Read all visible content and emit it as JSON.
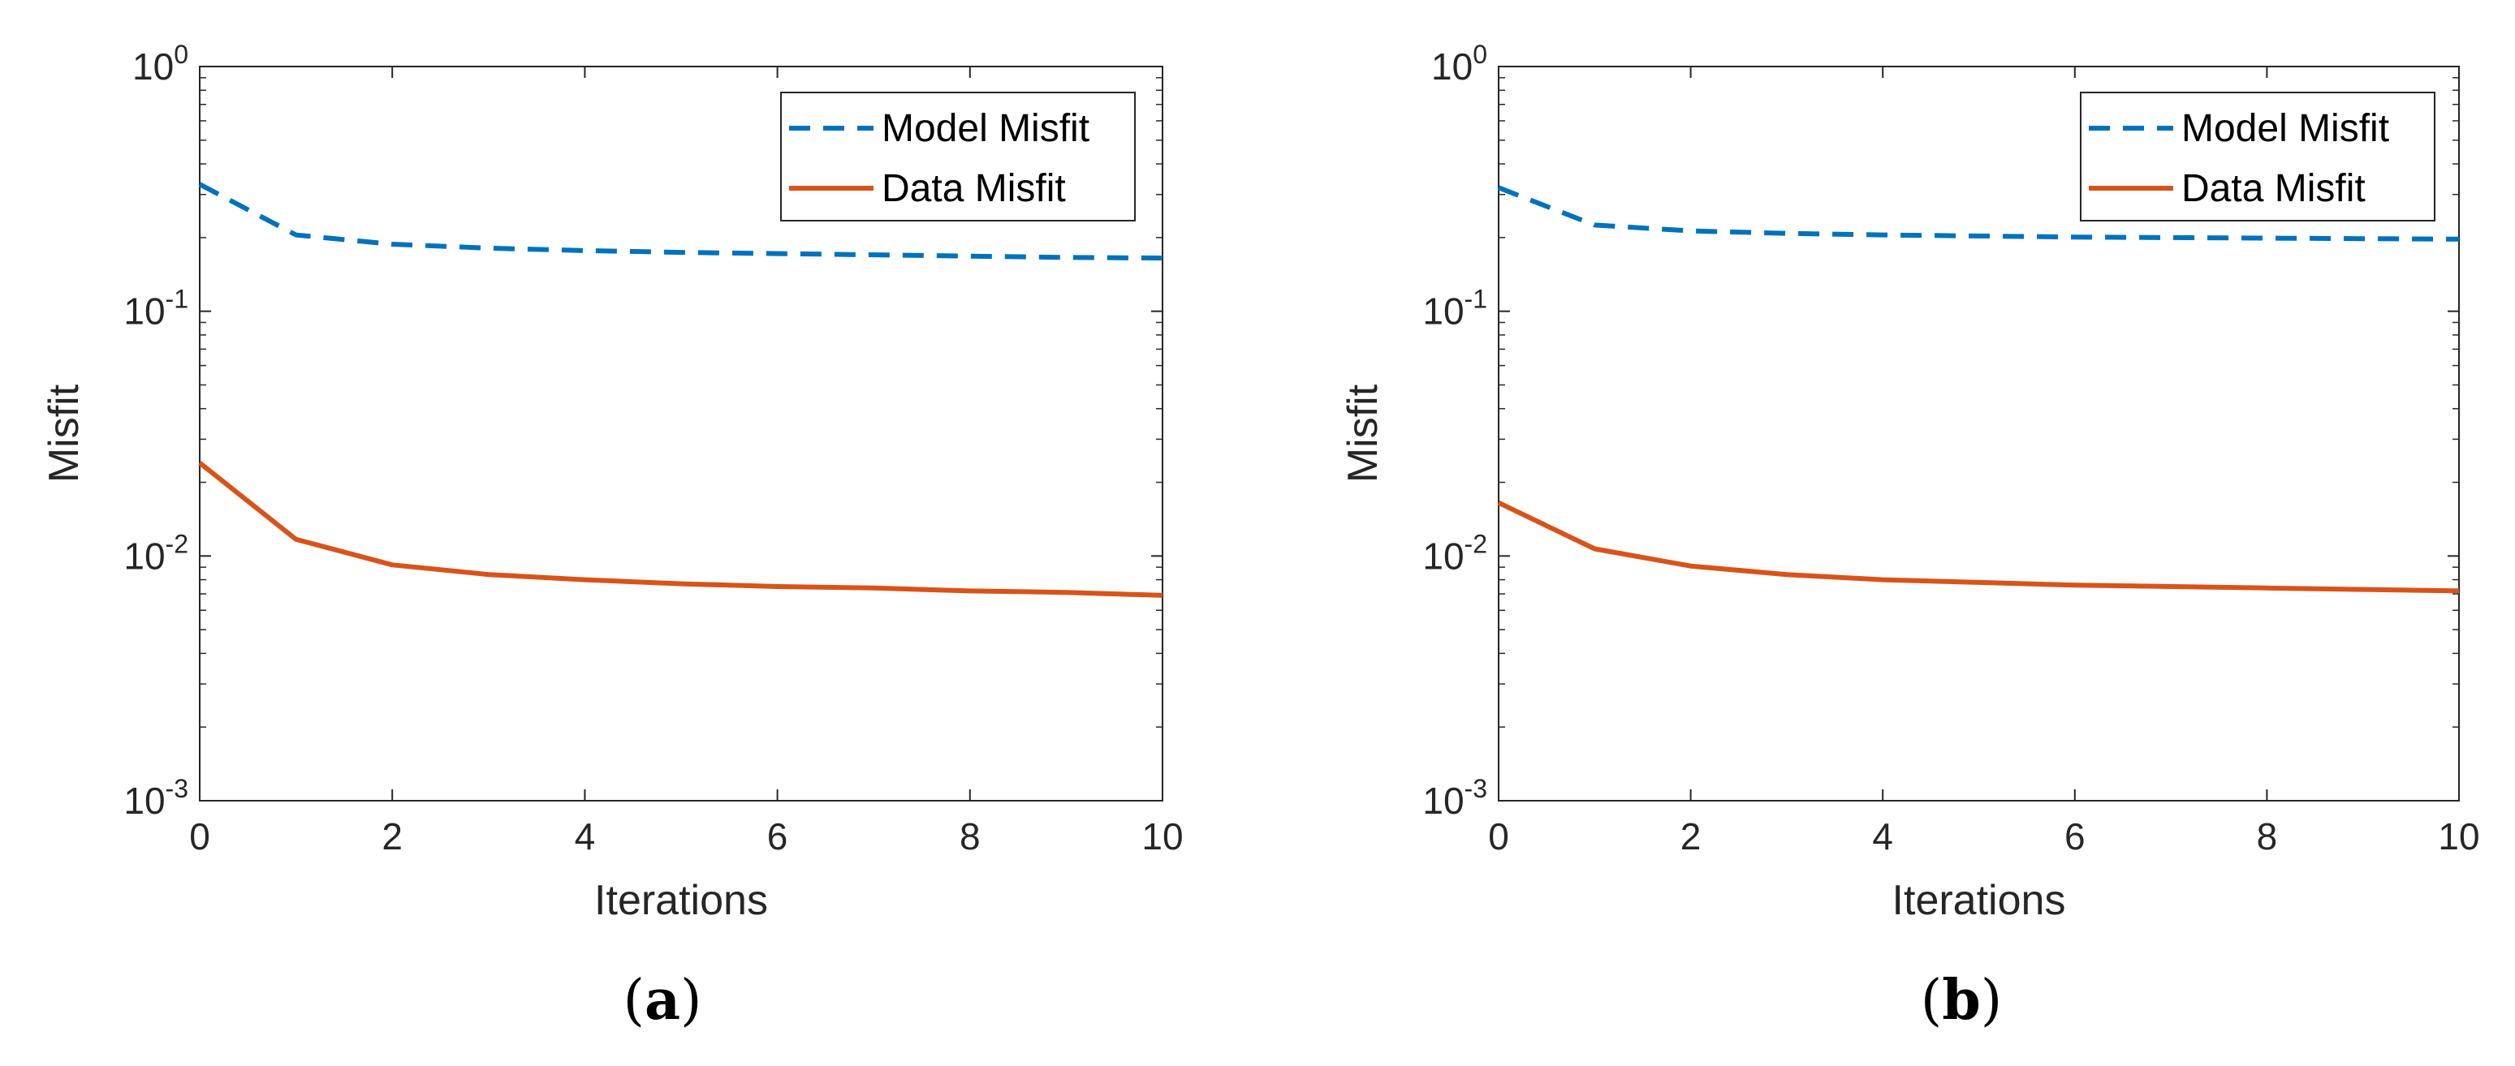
{
  "chart_data": [
    {
      "type": "line",
      "panel_label": "a",
      "caption": {
        "open": "(",
        "letter": "a",
        "close": ")"
      },
      "xlabel": "Iterations",
      "ylabel": "Misfit",
      "yscale": "log",
      "xlim": [
        0,
        10
      ],
      "ylim": [
        0.001,
        1
      ],
      "xticks": [
        "0",
        "2",
        "4",
        "6",
        "8",
        "10"
      ],
      "yticks": [
        {
          "base": "10",
          "exp": "0"
        },
        {
          "base": "10",
          "exp": "-1"
        },
        {
          "base": "10",
          "exp": "-2"
        },
        {
          "base": "10",
          "exp": "-3"
        }
      ],
      "legend_position": "top-right",
      "x": [
        0,
        1,
        2,
        3,
        4,
        5,
        6,
        7,
        8,
        9,
        10
      ],
      "series": [
        {
          "name": "Model Misfit",
          "style": "dashed",
          "color": "#0072BD",
          "values": [
            0.33,
            0.205,
            0.188,
            0.181,
            0.177,
            0.174,
            0.172,
            0.17,
            0.168,
            0.166,
            0.165
          ]
        },
        {
          "name": "Data Misfit",
          "style": "solid",
          "color": "#D95319",
          "values": [
            0.024,
            0.0117,
            0.0092,
            0.0084,
            0.008,
            0.0077,
            0.0075,
            0.0074,
            0.0072,
            0.0071,
            0.0069
          ]
        }
      ]
    },
    {
      "type": "line",
      "panel_label": "b",
      "caption": {
        "open": "(",
        "letter": "b",
        "close": ")"
      },
      "xlabel": "Iterations",
      "ylabel": "Misfit",
      "yscale": "log",
      "xlim": [
        0,
        10
      ],
      "ylim": [
        0.001,
        1
      ],
      "xticks": [
        "0",
        "2",
        "4",
        "6",
        "8",
        "10"
      ],
      "yticks": [
        {
          "base": "10",
          "exp": "0"
        },
        {
          "base": "10",
          "exp": "-1"
        },
        {
          "base": "10",
          "exp": "-2"
        },
        {
          "base": "10",
          "exp": "-3"
        }
      ],
      "legend_position": "top-right",
      "x": [
        0,
        1,
        2,
        3,
        4,
        5,
        6,
        7,
        8,
        9,
        10
      ],
      "series": [
        {
          "name": "Model Misfit",
          "style": "dashed",
          "color": "#0072BD",
          "values": [
            0.32,
            0.225,
            0.213,
            0.208,
            0.205,
            0.203,
            0.201,
            0.2,
            0.199,
            0.198,
            0.197
          ]
        },
        {
          "name": "Data Misfit",
          "style": "solid",
          "color": "#D95319",
          "values": [
            0.0165,
            0.0107,
            0.0091,
            0.0084,
            0.008,
            0.0078,
            0.0076,
            0.0075,
            0.0074,
            0.0073,
            0.0072
          ]
        }
      ]
    }
  ]
}
